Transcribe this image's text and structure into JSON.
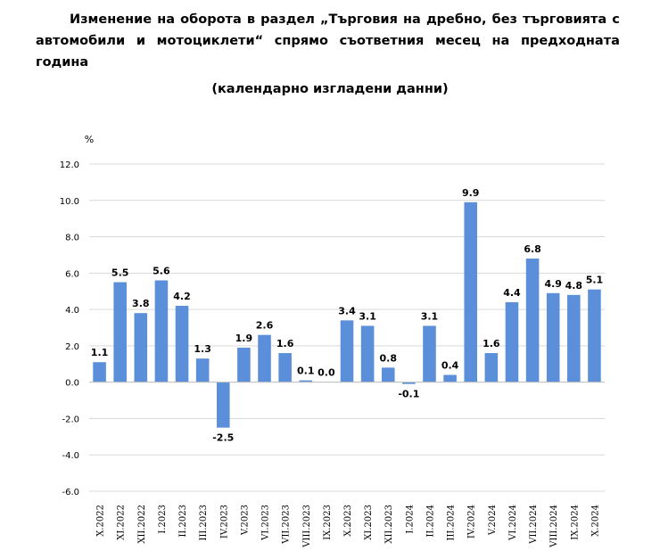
{
  "title": {
    "line1_words": [
      "Изменение",
      "на",
      "оборота",
      "в",
      "раздел",
      "„Търговия",
      "на",
      "дребно,",
      "без",
      "търговията",
      "с"
    ],
    "line2_words": [
      "автомобили",
      "и",
      "мотоциклети“",
      "спрямо",
      "съответния",
      "месец",
      "на",
      "предходната"
    ],
    "line3": "година",
    "subtitle": "(календарно изгладени данни)"
  },
  "chart_data": {
    "type": "bar",
    "unit_label": "%",
    "categories": [
      "X.2022",
      "XI.2022",
      "XII.2022",
      "I.2023",
      "II.2023",
      "III.2023",
      "IV.2023",
      "V.2023",
      "VI.2023",
      "VII.2023",
      "VIII.2023",
      "IX.2023",
      "X.2023",
      "XI.2023",
      "XII.2023",
      "I.2024",
      "II.2024",
      "III.2024",
      "IV.2024",
      "V.2024",
      "VI.2024",
      "VII.2024",
      "VIII.2024",
      "IX.2024",
      "X.2024"
    ],
    "values": [
      1.1,
      5.5,
      3.8,
      5.6,
      4.2,
      1.3,
      -2.5,
      1.9,
      2.6,
      1.6,
      0.1,
      0.0,
      3.4,
      3.1,
      0.8,
      -0.1,
      3.1,
      0.4,
      9.9,
      1.6,
      4.4,
      6.8,
      4.9,
      4.8,
      5.1
    ],
    "ylim": [
      -6.0,
      12.0
    ],
    "yticks": [
      "12.0",
      "10.0",
      "8.0",
      "6.0",
      "4.0",
      "2.0",
      "0.0",
      "-2.0",
      "-4.0",
      "-6.0"
    ],
    "grid": true,
    "bar_color": "#5b8fd9"
  }
}
